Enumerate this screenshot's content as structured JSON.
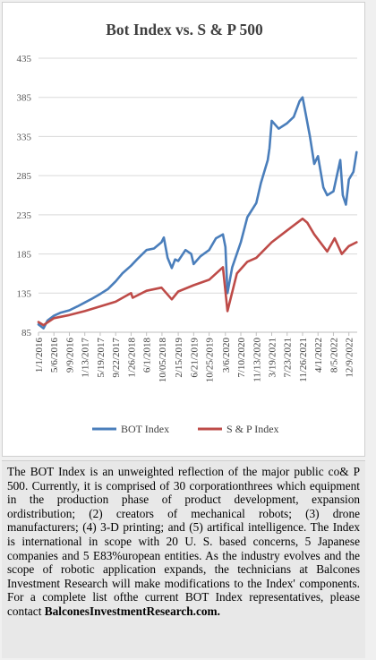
{
  "chart_data": {
    "type": "line",
    "title": "Bot Index vs. S & P 500",
    "ylim": [
      85,
      435
    ],
    "yticks": [
      85,
      135,
      185,
      235,
      285,
      335,
      385,
      435
    ],
    "xlim": [
      "2016-01-01",
      "2023-02-15"
    ],
    "xtick_labels": [
      "1/1/2016",
      "5/6/2016",
      "9/9/2016",
      "1/13/2017",
      "5/19/2017",
      "9/22/2017",
      "1/26/2018",
      "6/1/2018",
      "10/05/2018",
      "2/15/2019",
      "6/21/2019",
      "10/25/2019",
      "3/6/2020",
      "7/10/2020",
      "11/13/2020",
      "3/19/2021",
      "7/23/2021",
      "11/26/2021",
      "4/1/2022",
      "8/5/2022",
      "12/9/2022"
    ],
    "xtick_dates": [
      "2016-01-01",
      "2016-05-06",
      "2016-09-09",
      "2017-01-13",
      "2017-05-19",
      "2017-09-22",
      "2018-01-26",
      "2018-06-01",
      "2018-10-05",
      "2019-02-15",
      "2019-06-21",
      "2019-10-25",
      "2020-03-06",
      "2020-07-10",
      "2020-11-13",
      "2021-03-19",
      "2021-07-23",
      "2021-11-26",
      "2022-04-01",
      "2022-08-05",
      "2022-12-09"
    ],
    "legend_position": "bottom",
    "grid": "horizontal",
    "series": [
      {
        "name": "BOT Index",
        "color": "#4a7ebb",
        "x": [
          "2016-01-01",
          "2016-02-11",
          "2016-03-15",
          "2016-05-06",
          "2016-07-01",
          "2016-09-09",
          "2016-11-15",
          "2017-01-13",
          "2017-03-15",
          "2017-05-19",
          "2017-07-20",
          "2017-09-22",
          "2017-11-15",
          "2018-01-26",
          "2018-03-15",
          "2018-06-01",
          "2018-08-01",
          "2018-10-01",
          "2018-10-20",
          "2018-11-20",
          "2018-12-24",
          "2019-01-20",
          "2019-02-15",
          "2019-04-15",
          "2019-06-01",
          "2019-06-21",
          "2019-08-15",
          "2019-10-25",
          "2019-12-20",
          "2020-02-15",
          "2020-03-06",
          "2020-03-23",
          "2020-05-01",
          "2020-07-10",
          "2020-09-01",
          "2020-11-13",
          "2020-12-20",
          "2021-02-15",
          "2021-03-01",
          "2021-03-19",
          "2021-05-15",
          "2021-07-23",
          "2021-09-15",
          "2021-11-01",
          "2021-11-26",
          "2021-12-20",
          "2022-01-25",
          "2022-03-01",
          "2022-04-01",
          "2022-05-15",
          "2022-06-15",
          "2022-08-05",
          "2022-09-30",
          "2022-10-20",
          "2022-11-15",
          "2022-12-09",
          "2023-01-15",
          "2023-02-10"
        ],
        "y": [
          95,
          90,
          100,
          106,
          110,
          113,
          118,
          123,
          128,
          134,
          140,
          150,
          160,
          170,
          178,
          190,
          192,
          200,
          206,
          180,
          167,
          178,
          176,
          190,
          185,
          172,
          182,
          190,
          205,
          210,
          194,
          135,
          168,
          200,
          232,
          250,
          275,
          305,
          320,
          355,
          345,
          352,
          360,
          380,
          385,
          365,
          335,
          300,
          310,
          270,
          260,
          265,
          305,
          260,
          248,
          280,
          290,
          315
        ]
      },
      {
        "name": "S & P Index",
        "color": "#be4b48",
        "x": [
          "2016-01-01",
          "2016-02-11",
          "2016-05-06",
          "2016-09-09",
          "2017-01-13",
          "2017-05-19",
          "2017-09-22",
          "2018-01-26",
          "2018-02-08",
          "2018-06-01",
          "2018-10-01",
          "2018-12-24",
          "2019-02-15",
          "2019-06-21",
          "2019-10-25",
          "2020-02-15",
          "2020-03-23",
          "2020-06-08",
          "2020-09-01",
          "2020-11-13",
          "2021-03-19",
          "2021-07-23",
          "2021-11-26",
          "2022-01-03",
          "2022-03-01",
          "2022-06-15",
          "2022-08-15",
          "2022-10-12",
          "2022-12-09",
          "2023-02-10"
        ],
        "y": [
          98,
          94,
          103,
          107,
          112,
          118,
          124,
          135,
          129,
          138,
          142,
          127,
          137,
          145,
          152,
          168,
          112,
          160,
          175,
          180,
          200,
          215,
          230,
          225,
          210,
          188,
          205,
          185,
          195,
          200
        ]
      }
    ]
  },
  "caption": {
    "text": "The BOT Index is an unweighted reflection of the major public co& P 500. Currently, it is comprised of 30 corporationthrees which equipment in the production phase of product development, expansion ordistribution; (2) creators of mechanical robots; (3) drone manufacturers; (4) 3-D printing; and (5) artifical intelligence. The Index is international in scope with 20 U. S. based concerns, 5 Japanese companies and 5 E83%uropean entities. As the industry evolves and the scope of robotic application expands, the technicians at Balcones Investment Research will make modifications to the Index' components. For a complete list ofthe current BOT Index representatives, please contact",
    "link": "BalconesInvestmentResearch.com."
  }
}
